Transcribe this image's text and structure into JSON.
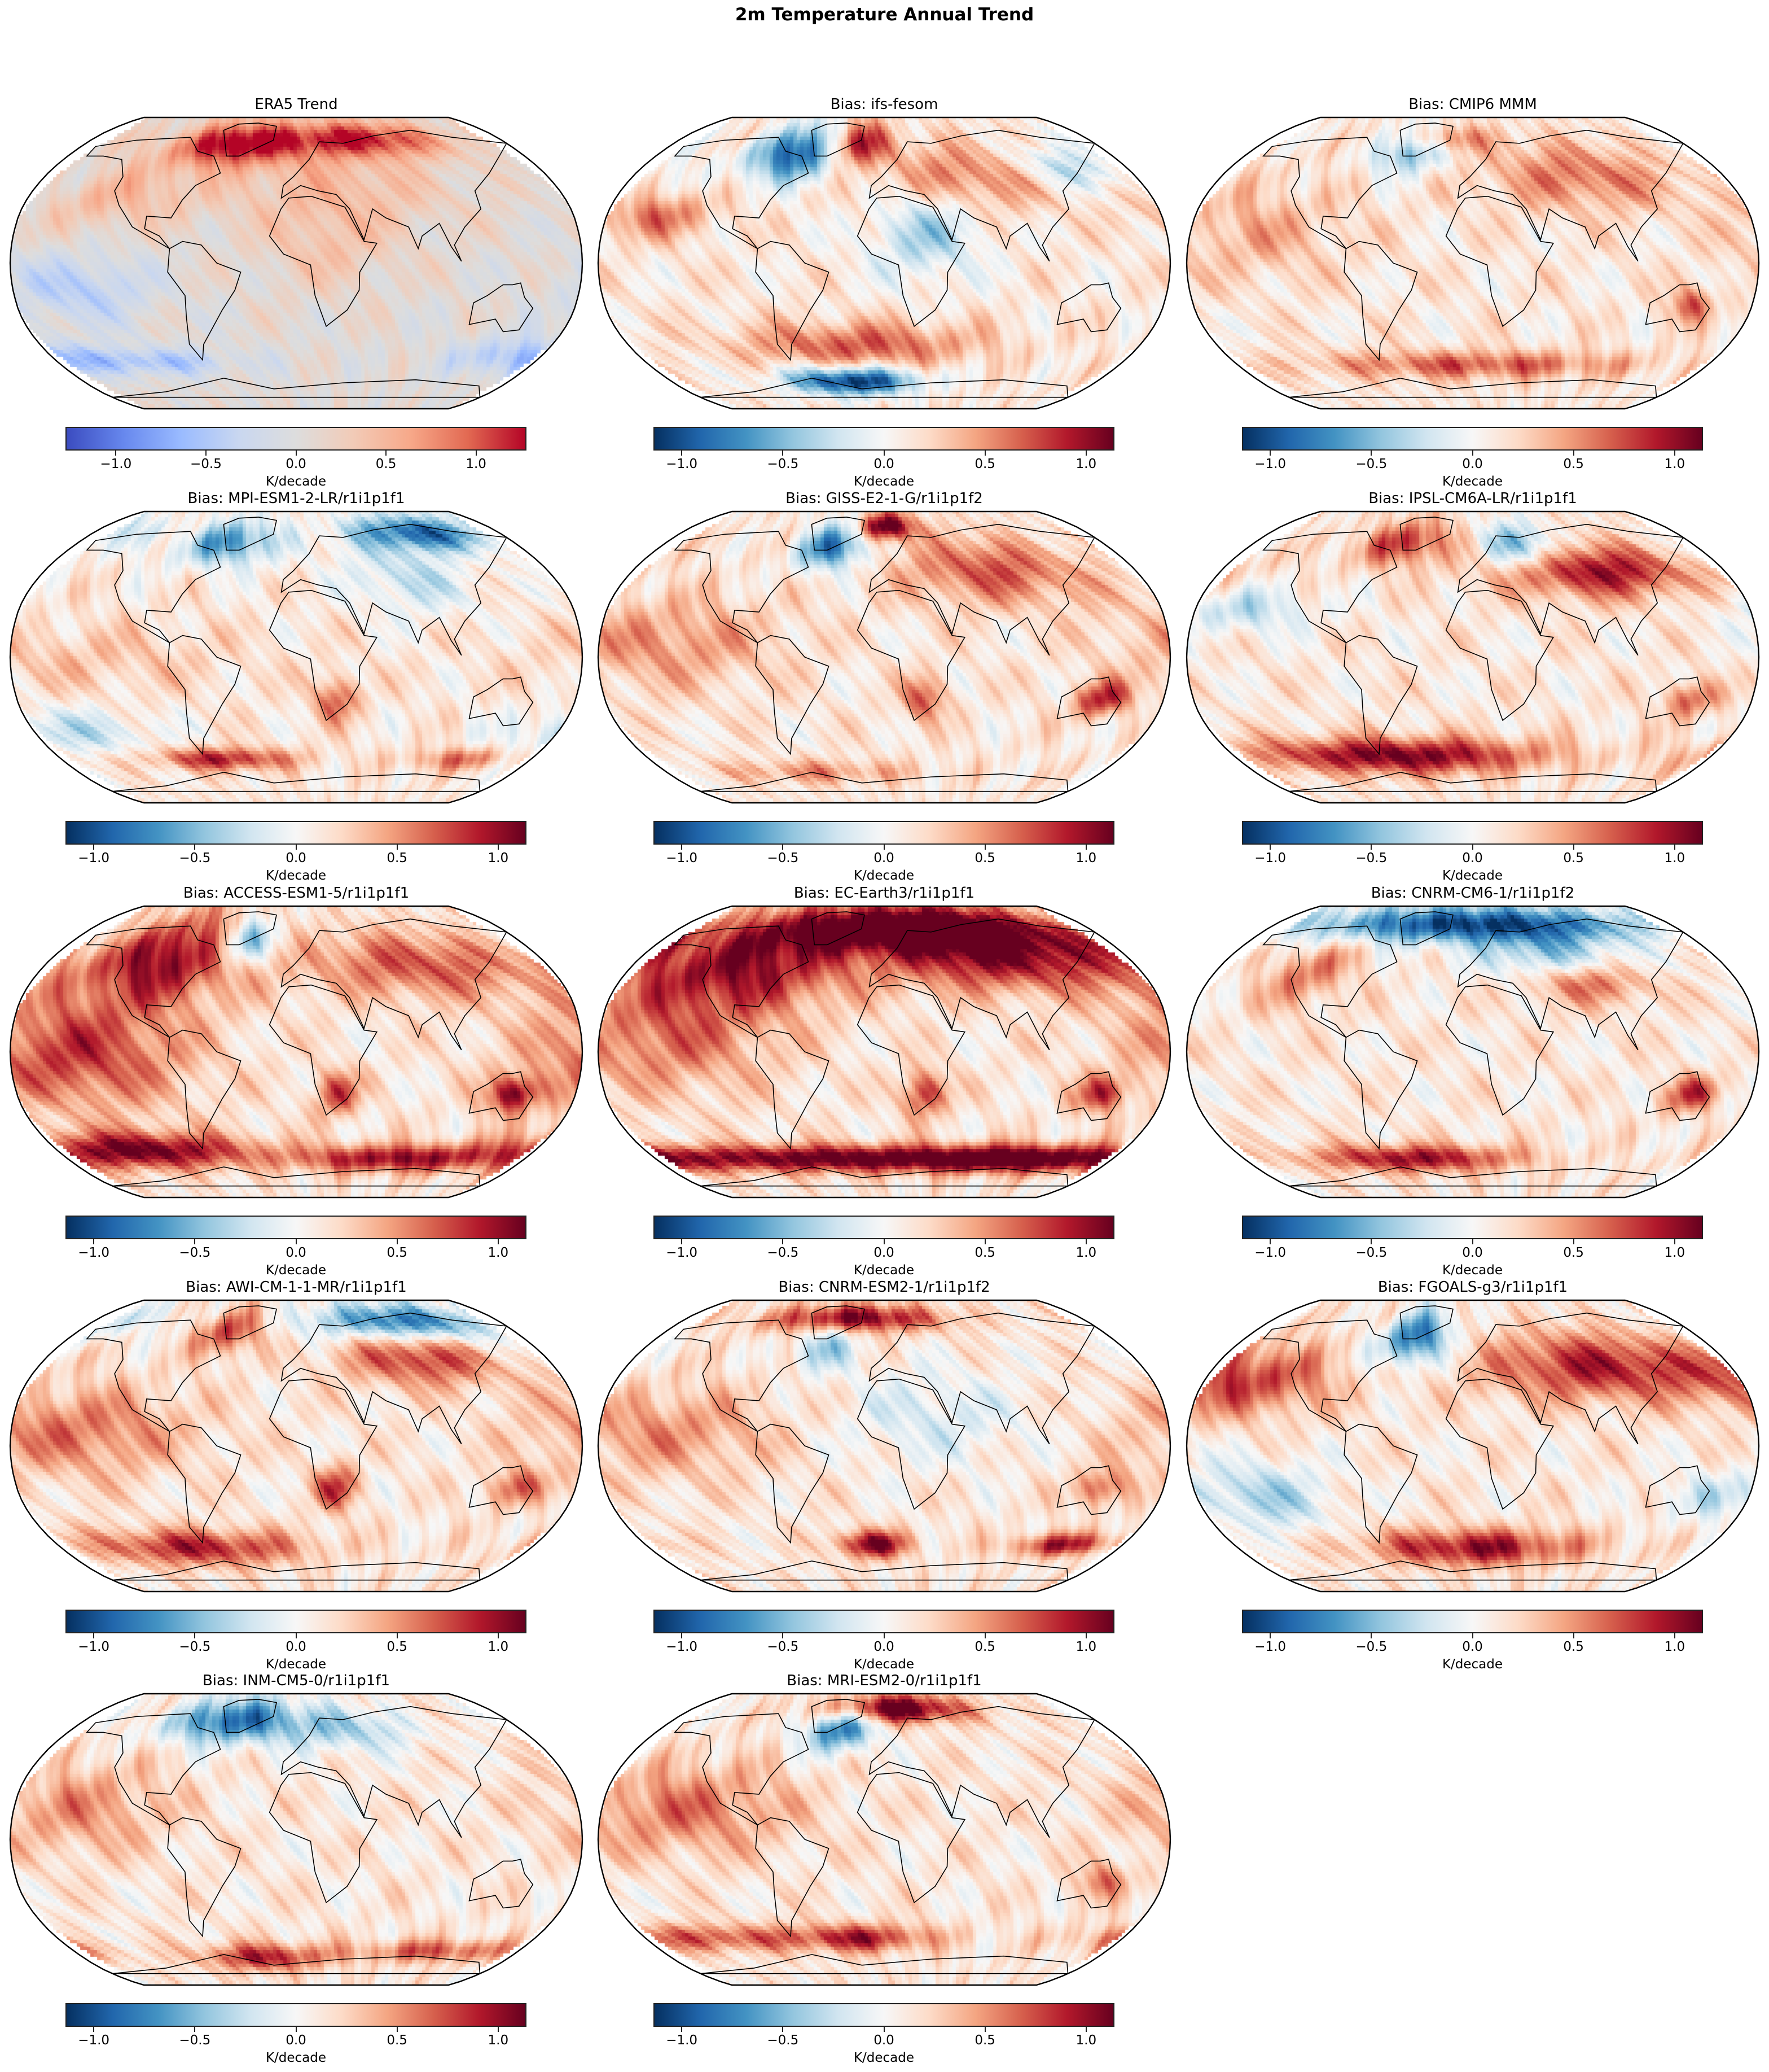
{
  "suptitle": "2m Temperature Annual Trend",
  "chart_data": {
    "type": "heatmap",
    "title": "2m Temperature Annual Trend",
    "projection": "Robinson",
    "colors": {
      "coolwarm": [
        "#3b4cc0",
        "#6788ee",
        "#9abbff",
        "#c9d7f0",
        "#dddddd",
        "#f2cbb7",
        "#f7a889",
        "#e26952",
        "#b40426"
      ],
      "RdBu_r": [
        "#053061",
        "#2166ac",
        "#4393c3",
        "#92c5de",
        "#d1e5f0",
        "#f7f7f7",
        "#fddbc7",
        "#f4a582",
        "#d6604d",
        "#b2182b",
        "#67001f"
      ]
    },
    "panels": [
      {
        "title": "ERA5 Trend",
        "colormap": "coolwarm",
        "vmin": -1.28,
        "vmax": 1.28,
        "ticks": [
          "−1.0",
          "−0.5",
          "0.0",
          "0.5",
          "1.0"
        ],
        "tick_values": [
          -1.0,
          -0.5,
          0.0,
          0.5,
          1.0
        ],
        "colorbar_label": "K/decade"
      },
      {
        "title": "Bias: ifs-fesom",
        "colormap": "RdBu_r",
        "vmin": -1.14,
        "vmax": 1.14,
        "ticks": [
          "−1.0",
          "−0.5",
          "0.0",
          "0.5",
          "1.0"
        ],
        "tick_values": [
          -1.0,
          -0.5,
          0.0,
          0.5,
          1.0
        ],
        "colorbar_label": "K/decade"
      },
      {
        "title": "Bias: CMIP6 MMM",
        "colormap": "RdBu_r",
        "vmin": -1.14,
        "vmax": 1.14,
        "ticks": [
          "−1.0",
          "−0.5",
          "0.0",
          "0.5",
          "1.0"
        ],
        "tick_values": [
          -1.0,
          -0.5,
          0.0,
          0.5,
          1.0
        ],
        "colorbar_label": "K/decade"
      },
      {
        "title": "Bias: MPI-ESM1-2-LR/r1i1p1f1",
        "colormap": "RdBu_r",
        "vmin": -1.14,
        "vmax": 1.14,
        "ticks": [
          "−1.0",
          "−0.5",
          "0.0",
          "0.5",
          "1.0"
        ],
        "tick_values": [
          -1.0,
          -0.5,
          0.0,
          0.5,
          1.0
        ],
        "colorbar_label": "K/decade"
      },
      {
        "title": "Bias: GISS-E2-1-G/r1i1p1f2",
        "colormap": "RdBu_r",
        "vmin": -1.14,
        "vmax": 1.14,
        "ticks": [
          "−1.0",
          "−0.5",
          "0.0",
          "0.5",
          "1.0"
        ],
        "tick_values": [
          -1.0,
          -0.5,
          0.0,
          0.5,
          1.0
        ],
        "colorbar_label": "K/decade"
      },
      {
        "title": "Bias: IPSL-CM6A-LR/r1i1p1f1",
        "colormap": "RdBu_r",
        "vmin": -1.14,
        "vmax": 1.14,
        "ticks": [
          "−1.0",
          "−0.5",
          "0.0",
          "0.5",
          "1.0"
        ],
        "tick_values": [
          -1.0,
          -0.5,
          0.0,
          0.5,
          1.0
        ],
        "colorbar_label": "K/decade"
      },
      {
        "title": "Bias: ACCESS-ESM1-5/r1i1p1f1",
        "colormap": "RdBu_r",
        "vmin": -1.14,
        "vmax": 1.14,
        "ticks": [
          "−1.0",
          "−0.5",
          "0.0",
          "0.5",
          "1.0"
        ],
        "tick_values": [
          -1.0,
          -0.5,
          0.0,
          0.5,
          1.0
        ],
        "colorbar_label": "K/decade"
      },
      {
        "title": "Bias: EC-Earth3/r1i1p1f1",
        "colormap": "RdBu_r",
        "vmin": -1.14,
        "vmax": 1.14,
        "ticks": [
          "−1.0",
          "−0.5",
          "0.0",
          "0.5",
          "1.0"
        ],
        "tick_values": [
          -1.0,
          -0.5,
          0.0,
          0.5,
          1.0
        ],
        "colorbar_label": "K/decade"
      },
      {
        "title": "Bias: CNRM-CM6-1/r1i1p1f2",
        "colormap": "RdBu_r",
        "vmin": -1.14,
        "vmax": 1.14,
        "ticks": [
          "−1.0",
          "−0.5",
          "0.0",
          "0.5",
          "1.0"
        ],
        "tick_values": [
          -1.0,
          -0.5,
          0.0,
          0.5,
          1.0
        ],
        "colorbar_label": "K/decade"
      },
      {
        "title": "Bias: AWI-CM-1-1-MR/r1i1p1f1",
        "colormap": "RdBu_r",
        "vmin": -1.14,
        "vmax": 1.14,
        "ticks": [
          "−1.0",
          "−0.5",
          "0.0",
          "0.5",
          "1.0"
        ],
        "tick_values": [
          -1.0,
          -0.5,
          0.0,
          0.5,
          1.0
        ],
        "colorbar_label": "K/decade"
      },
      {
        "title": "Bias: CNRM-ESM2-1/r1i1p1f2",
        "colormap": "RdBu_r",
        "vmin": -1.14,
        "vmax": 1.14,
        "ticks": [
          "−1.0",
          "−0.5",
          "0.0",
          "0.5",
          "1.0"
        ],
        "tick_values": [
          -1.0,
          -0.5,
          0.0,
          0.5,
          1.0
        ],
        "colorbar_label": "K/decade"
      },
      {
        "title": "Bias: FGOALS-g3/r1i1p1f1",
        "colormap": "RdBu_r",
        "vmin": -1.14,
        "vmax": 1.14,
        "ticks": [
          "−1.0",
          "−0.5",
          "0.0",
          "0.5",
          "1.0"
        ],
        "tick_values": [
          -1.0,
          -0.5,
          0.0,
          0.5,
          1.0
        ],
        "colorbar_label": "K/decade"
      },
      {
        "title": "Bias: INM-CM5-0/r1i1p1f1",
        "colormap": "RdBu_r",
        "vmin": -1.14,
        "vmax": 1.14,
        "ticks": [
          "−1.0",
          "−0.5",
          "0.0",
          "0.5",
          "1.0"
        ],
        "tick_values": [
          -1.0,
          -0.5,
          0.0,
          0.5,
          1.0
        ],
        "colorbar_label": "K/decade"
      },
      {
        "title": "Bias: MRI-ESM2-0/r1i1p1f1",
        "colormap": "RdBu_r",
        "vmin": -1.14,
        "vmax": 1.14,
        "ticks": [
          "−1.0",
          "−0.5",
          "0.0",
          "0.5",
          "1.0"
        ],
        "tick_values": [
          -1.0,
          -0.5,
          0.0,
          0.5,
          1.0
        ],
        "colorbar_label": "K/decade"
      }
    ]
  }
}
